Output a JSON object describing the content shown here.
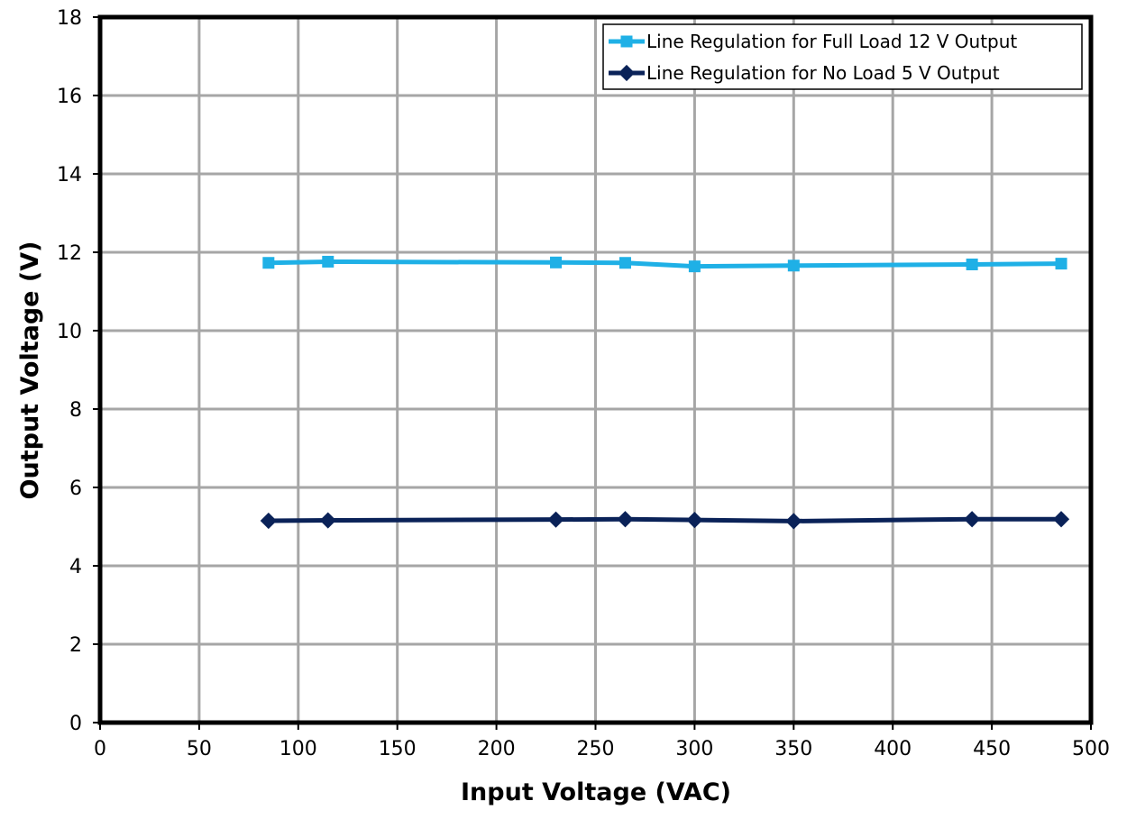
{
  "colors": {
    "series_full_load": "#1FB0E6",
    "series_no_load": "#0A2258",
    "grid": "#A6A6A6",
    "axis": "#000000"
  },
  "chart_data": {
    "type": "line",
    "title": "",
    "xlabel": "Input Voltage (VAC)",
    "ylabel": "Output Voltage (V)",
    "xlim": [
      0,
      500
    ],
    "ylim": [
      0,
      18
    ],
    "xticks": [
      0,
      50,
      100,
      150,
      200,
      250,
      300,
      350,
      400,
      450,
      500
    ],
    "yticks": [
      0,
      2,
      4,
      6,
      8,
      10,
      12,
      14,
      16,
      18
    ],
    "grid": true,
    "legend_position": "top-right",
    "series": [
      {
        "name": "Line Regulation for Full Load 12 V Output",
        "marker": "square",
        "color_key": "series_full_load",
        "x": [
          85,
          115,
          230,
          265,
          300,
          350,
          440,
          485
        ],
        "y": [
          11.73,
          11.76,
          11.74,
          11.73,
          11.64,
          11.66,
          11.69,
          11.71
        ]
      },
      {
        "name": "Line Regulation for No Load 5 V Output",
        "marker": "diamond",
        "color_key": "series_no_load",
        "x": [
          85,
          115,
          230,
          265,
          300,
          350,
          440,
          485
        ],
        "y": [
          5.15,
          5.16,
          5.18,
          5.19,
          5.17,
          5.14,
          5.19,
          5.19
        ]
      }
    ]
  }
}
